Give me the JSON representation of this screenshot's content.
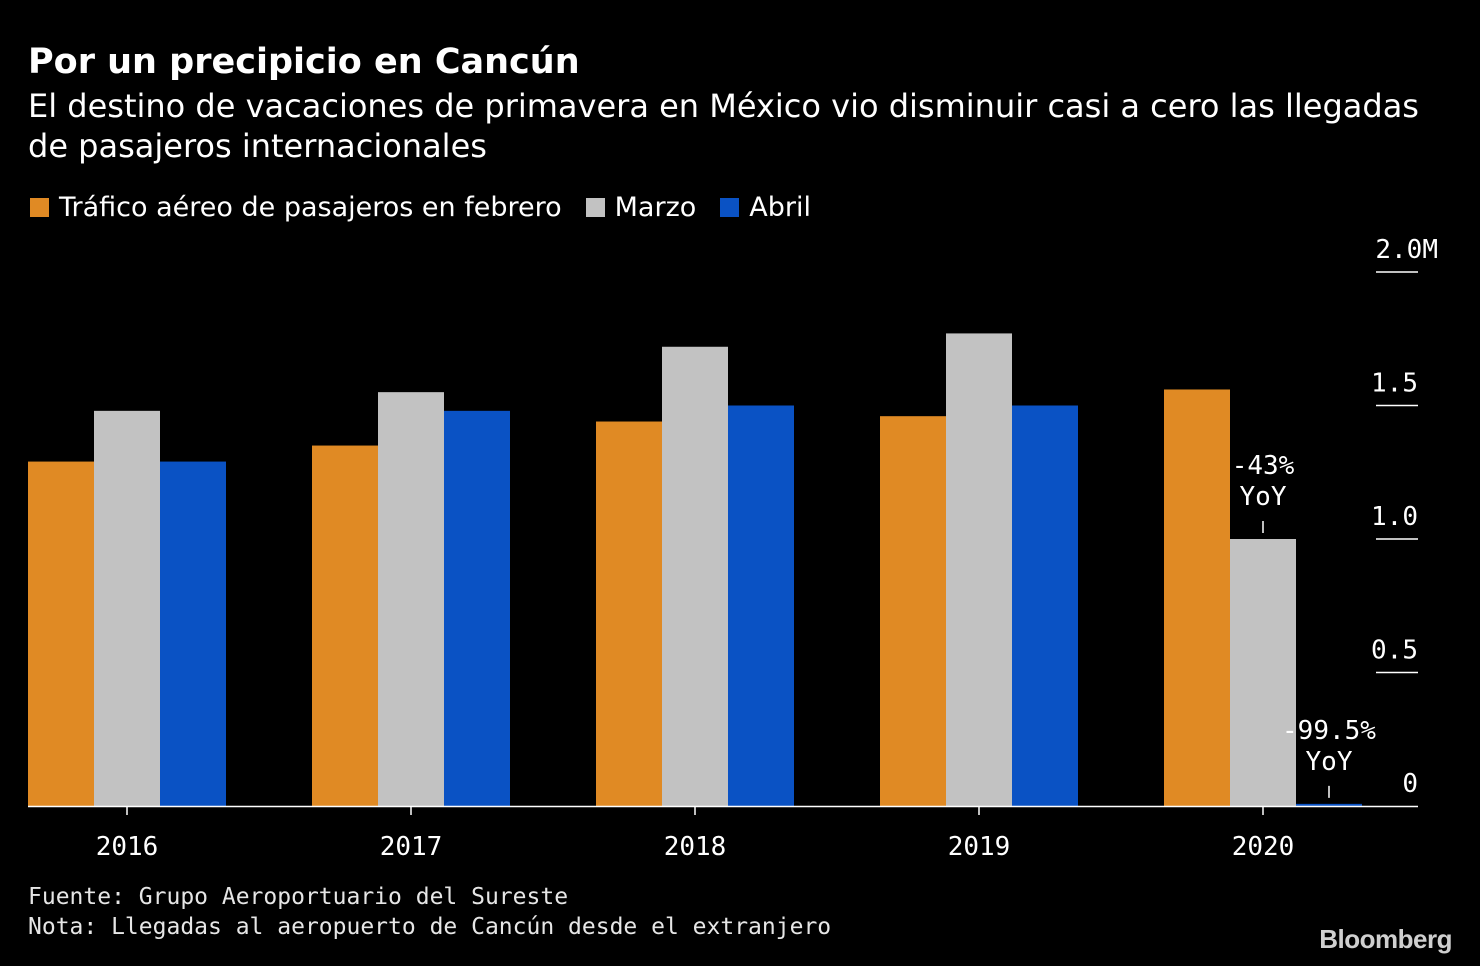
{
  "header": {
    "title": "Por un precipicio en Cancún",
    "subtitle": "El destino de vacaciones de primavera en México vio disminuir casi a cero las llegadas de pasajeros internacionales"
  },
  "footer": {
    "source": "Fuente: Grupo Aeroportuario del Sureste",
    "note": "Nota: Llegadas al aeropuerto de Cancún desde el extranjero",
    "brand": "Bloomberg"
  },
  "chart_data": {
    "type": "bar",
    "title": "Por un precipicio en Cancún",
    "categories": [
      "2016",
      "2017",
      "2018",
      "2019",
      "2020"
    ],
    "series": [
      {
        "name": "Tráfico aéreo de pasajeros en febrero",
        "color": "#e08a24",
        "values": [
          1.29,
          1.35,
          1.44,
          1.46,
          1.56
        ]
      },
      {
        "name": "Marzo",
        "color": "#c2c2c2",
        "values": [
          1.48,
          1.55,
          1.72,
          1.77,
          1.0
        ]
      },
      {
        "name": "Abril",
        "color": "#0a52c4",
        "values": [
          1.29,
          1.48,
          1.5,
          1.5,
          0.008
        ]
      }
    ],
    "yaxis": {
      "ticks": [
        0,
        0.5,
        1.0,
        1.5,
        2.0
      ],
      "tick_labels": [
        "0",
        "0.5",
        "1.0",
        "1.5",
        "2.0M"
      ],
      "range": [
        0,
        2.0
      ],
      "position": "right"
    },
    "grid": false,
    "legend_placement": "top-left",
    "annotations": [
      {
        "category": "2020",
        "series": "Marzo",
        "lines": [
          "-43%",
          "YoY"
        ]
      },
      {
        "category": "2020",
        "series": "Abril",
        "lines": [
          "-99.5%",
          "YoY"
        ]
      }
    ]
  }
}
